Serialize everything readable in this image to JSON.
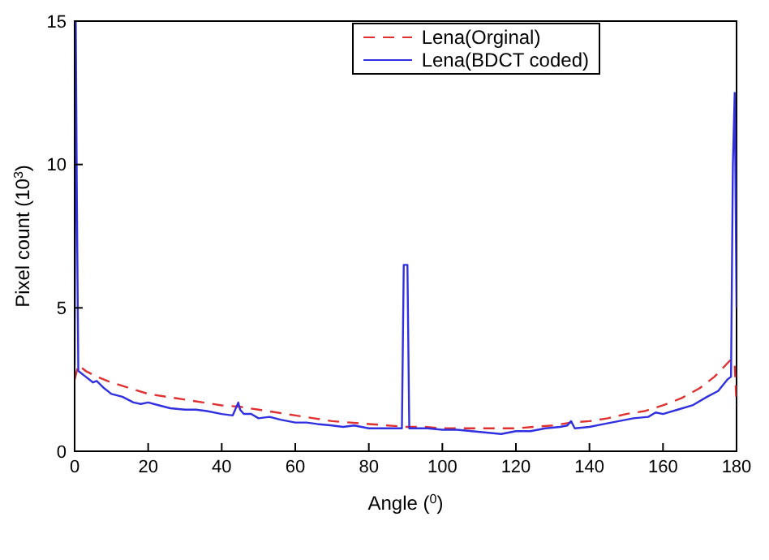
{
  "chart_data": {
    "type": "line",
    "xlabel": "Angle ($^{0}$)",
    "ylabel": "Pixel count (10$^{3}$)",
    "xlim": [
      0,
      180
    ],
    "ylim": [
      0,
      15
    ],
    "xticks": [
      0,
      20,
      40,
      60,
      80,
      100,
      120,
      140,
      160,
      180
    ],
    "yticks": [
      0,
      5,
      10,
      15
    ],
    "legend": "top right",
    "series": [
      {
        "name": "Lena(Orginal)",
        "color": "#e03030",
        "line_style": "dashed",
        "x": [
          0,
          1,
          3,
          6,
          10,
          15,
          20,
          25,
          30,
          35,
          40,
          45,
          50,
          55,
          60,
          65,
          70,
          75,
          80,
          85,
          90,
          95,
          100,
          105,
          110,
          115,
          120,
          125,
          130,
          135,
          140,
          145,
          150,
          155,
          160,
          165,
          170,
          174,
          177,
          178.5,
          179.5,
          180
        ],
        "values": [
          2.5,
          3.0,
          2.8,
          2.6,
          2.4,
          2.2,
          2.0,
          1.9,
          1.8,
          1.7,
          1.6,
          1.55,
          1.45,
          1.35,
          1.25,
          1.15,
          1.05,
          1.0,
          0.95,
          0.9,
          0.85,
          0.85,
          0.8,
          0.8,
          0.8,
          0.8,
          0.8,
          0.85,
          0.9,
          1.0,
          1.05,
          1.15,
          1.3,
          1.4,
          1.6,
          1.85,
          2.2,
          2.6,
          3.0,
          3.2,
          3.0,
          1.6
        ]
      },
      {
        "name": "Lena(BDCT coded)",
        "color": "#3030e0",
        "line_style": "solid",
        "x": [
          0,
          0.3,
          0.6,
          1,
          3,
          5,
          6,
          8,
          10,
          13,
          16,
          18,
          20,
          23,
          26,
          30,
          33,
          36,
          40,
          43,
          44.5,
          45,
          46,
          48,
          50,
          53,
          56,
          60,
          63,
          66,
          70,
          73,
          76,
          80,
          84,
          88,
          89,
          89.5,
          90.5,
          91,
          92,
          96,
          100,
          104,
          108,
          112,
          116,
          120,
          124,
          128,
          132,
          134,
          135,
          136,
          140,
          144,
          148,
          152,
          156,
          158,
          160,
          164,
          168,
          172,
          175,
          177.5,
          178.5,
          179,
          179.5,
          180
        ],
        "values": [
          3.0,
          15,
          9.0,
          2.8,
          2.6,
          2.4,
          2.45,
          2.2,
          2.0,
          1.9,
          1.7,
          1.65,
          1.7,
          1.6,
          1.5,
          1.45,
          1.45,
          1.4,
          1.3,
          1.25,
          1.7,
          1.45,
          1.3,
          1.3,
          1.15,
          1.2,
          1.1,
          1.0,
          1.0,
          0.95,
          0.9,
          0.85,
          0.9,
          0.8,
          0.8,
          0.8,
          0.8,
          6.5,
          6.5,
          0.8,
          0.8,
          0.8,
          0.75,
          0.75,
          0.7,
          0.65,
          0.6,
          0.7,
          0.7,
          0.8,
          0.85,
          0.9,
          1.05,
          0.8,
          0.85,
          0.95,
          1.05,
          1.15,
          1.2,
          1.35,
          1.3,
          1.45,
          1.6,
          1.9,
          2.1,
          2.5,
          2.6,
          10.0,
          12.5,
          5.0
        ]
      }
    ]
  }
}
